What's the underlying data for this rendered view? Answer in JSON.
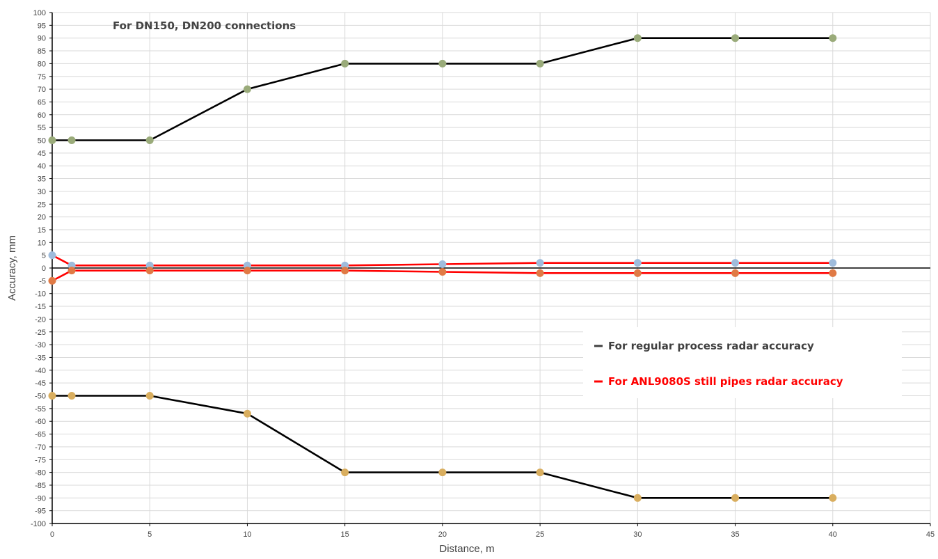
{
  "chart_data": {
    "type": "line",
    "title": "",
    "annotation": "For DN150, DN200 connections",
    "xlabel": "Distance, m",
    "ylabel": "Accuracy, mm",
    "xlim": [
      0,
      45
    ],
    "ylim": [
      -100,
      100
    ],
    "x_ticks": [
      0,
      5,
      10,
      15,
      20,
      25,
      30,
      35,
      40,
      45
    ],
    "y_ticks": [
      100,
      95,
      90,
      85,
      80,
      75,
      70,
      65,
      60,
      55,
      50,
      45,
      40,
      35,
      30,
      25,
      20,
      15,
      10,
      5,
      0,
      -5,
      -10,
      -15,
      -20,
      -25,
      -30,
      -35,
      -40,
      -45,
      -50,
      -55,
      -60,
      -65,
      -70,
      -75,
      -80,
      -85,
      -90,
      -95,
      -100
    ],
    "grid": true,
    "legend_position": "right",
    "legend": [
      {
        "label": "For regular process radar accuracy",
        "color": "#404040"
      },
      {
        "label": "For ANL9080S still pipes radar accuracy",
        "color": "#ff0000"
      }
    ],
    "series": [
      {
        "line_color": "#000000",
        "marker_color": "#9aab7a",
        "x": [
          0,
          1,
          5,
          10,
          15,
          20,
          25,
          30,
          35,
          40
        ],
        "y": [
          50,
          50,
          50,
          70,
          80,
          80,
          80,
          90,
          90,
          90
        ]
      },
      {
        "line_color": "#000000",
        "marker_color": "#d9ae5f",
        "x": [
          0,
          1,
          5,
          10,
          15,
          20,
          25,
          30,
          35,
          40
        ],
        "y": [
          -50,
          -50,
          -50,
          -57,
          -80,
          -80,
          -80,
          -90,
          -90,
          -90
        ]
      },
      {
        "line_color": "#ff0000",
        "marker_color": "#9fbcdc",
        "x": [
          0,
          1,
          5,
          10,
          15,
          20,
          25,
          30,
          35,
          40
        ],
        "y": [
          5,
          1,
          1,
          1,
          1,
          1.5,
          2,
          2,
          2,
          2
        ]
      },
      {
        "line_color": "#ff0000",
        "marker_color": "#e07a45",
        "x": [
          0,
          1,
          5,
          10,
          15,
          20,
          25,
          30,
          35,
          40
        ],
        "y": [
          -5,
          -1,
          -1,
          -1,
          -1,
          -1.5,
          -2,
          -2,
          -2,
          -2
        ]
      }
    ]
  }
}
